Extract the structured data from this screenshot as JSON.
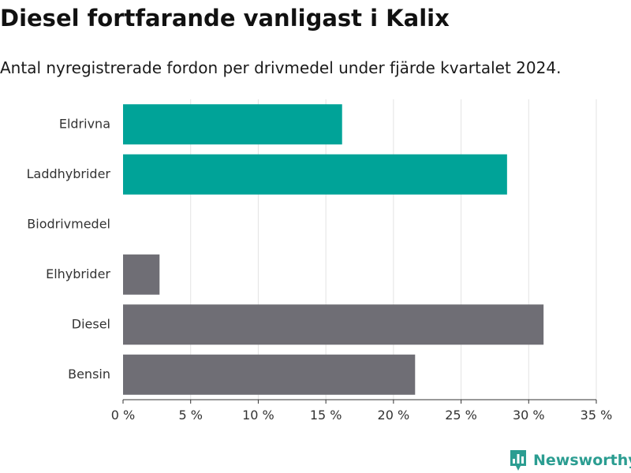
{
  "header": {
    "title": "Diesel fortfarande vanligast i Kalix",
    "subtitle": "Antal nyregistrerade fordon per drivmedel under fjärde kvartalet 2024."
  },
  "brand": {
    "name": "Newsworthy",
    "color": "#2b9d91"
  },
  "chart_data": {
    "type": "bar",
    "orientation": "horizontal",
    "categories": [
      "Eldrivna",
      "Laddhybrider",
      "Biodrivmedel",
      "Elhybrider",
      "Diesel",
      "Bensin"
    ],
    "values": [
      16.2,
      28.4,
      0,
      2.7,
      31.1,
      21.6
    ],
    "colors": [
      "#00a398",
      "#00a398",
      "#6f6e75",
      "#6f6e75",
      "#6f6e75",
      "#6f6e75"
    ],
    "xlim": [
      0,
      35
    ],
    "xticks": [
      0,
      5,
      10,
      15,
      20,
      25,
      30,
      35
    ],
    "xtick_labels": [
      "0 %",
      "5 %",
      "10 %",
      "15 %",
      "20 %",
      "25 %",
      "30 %",
      "35 %"
    ],
    "grid": true
  }
}
